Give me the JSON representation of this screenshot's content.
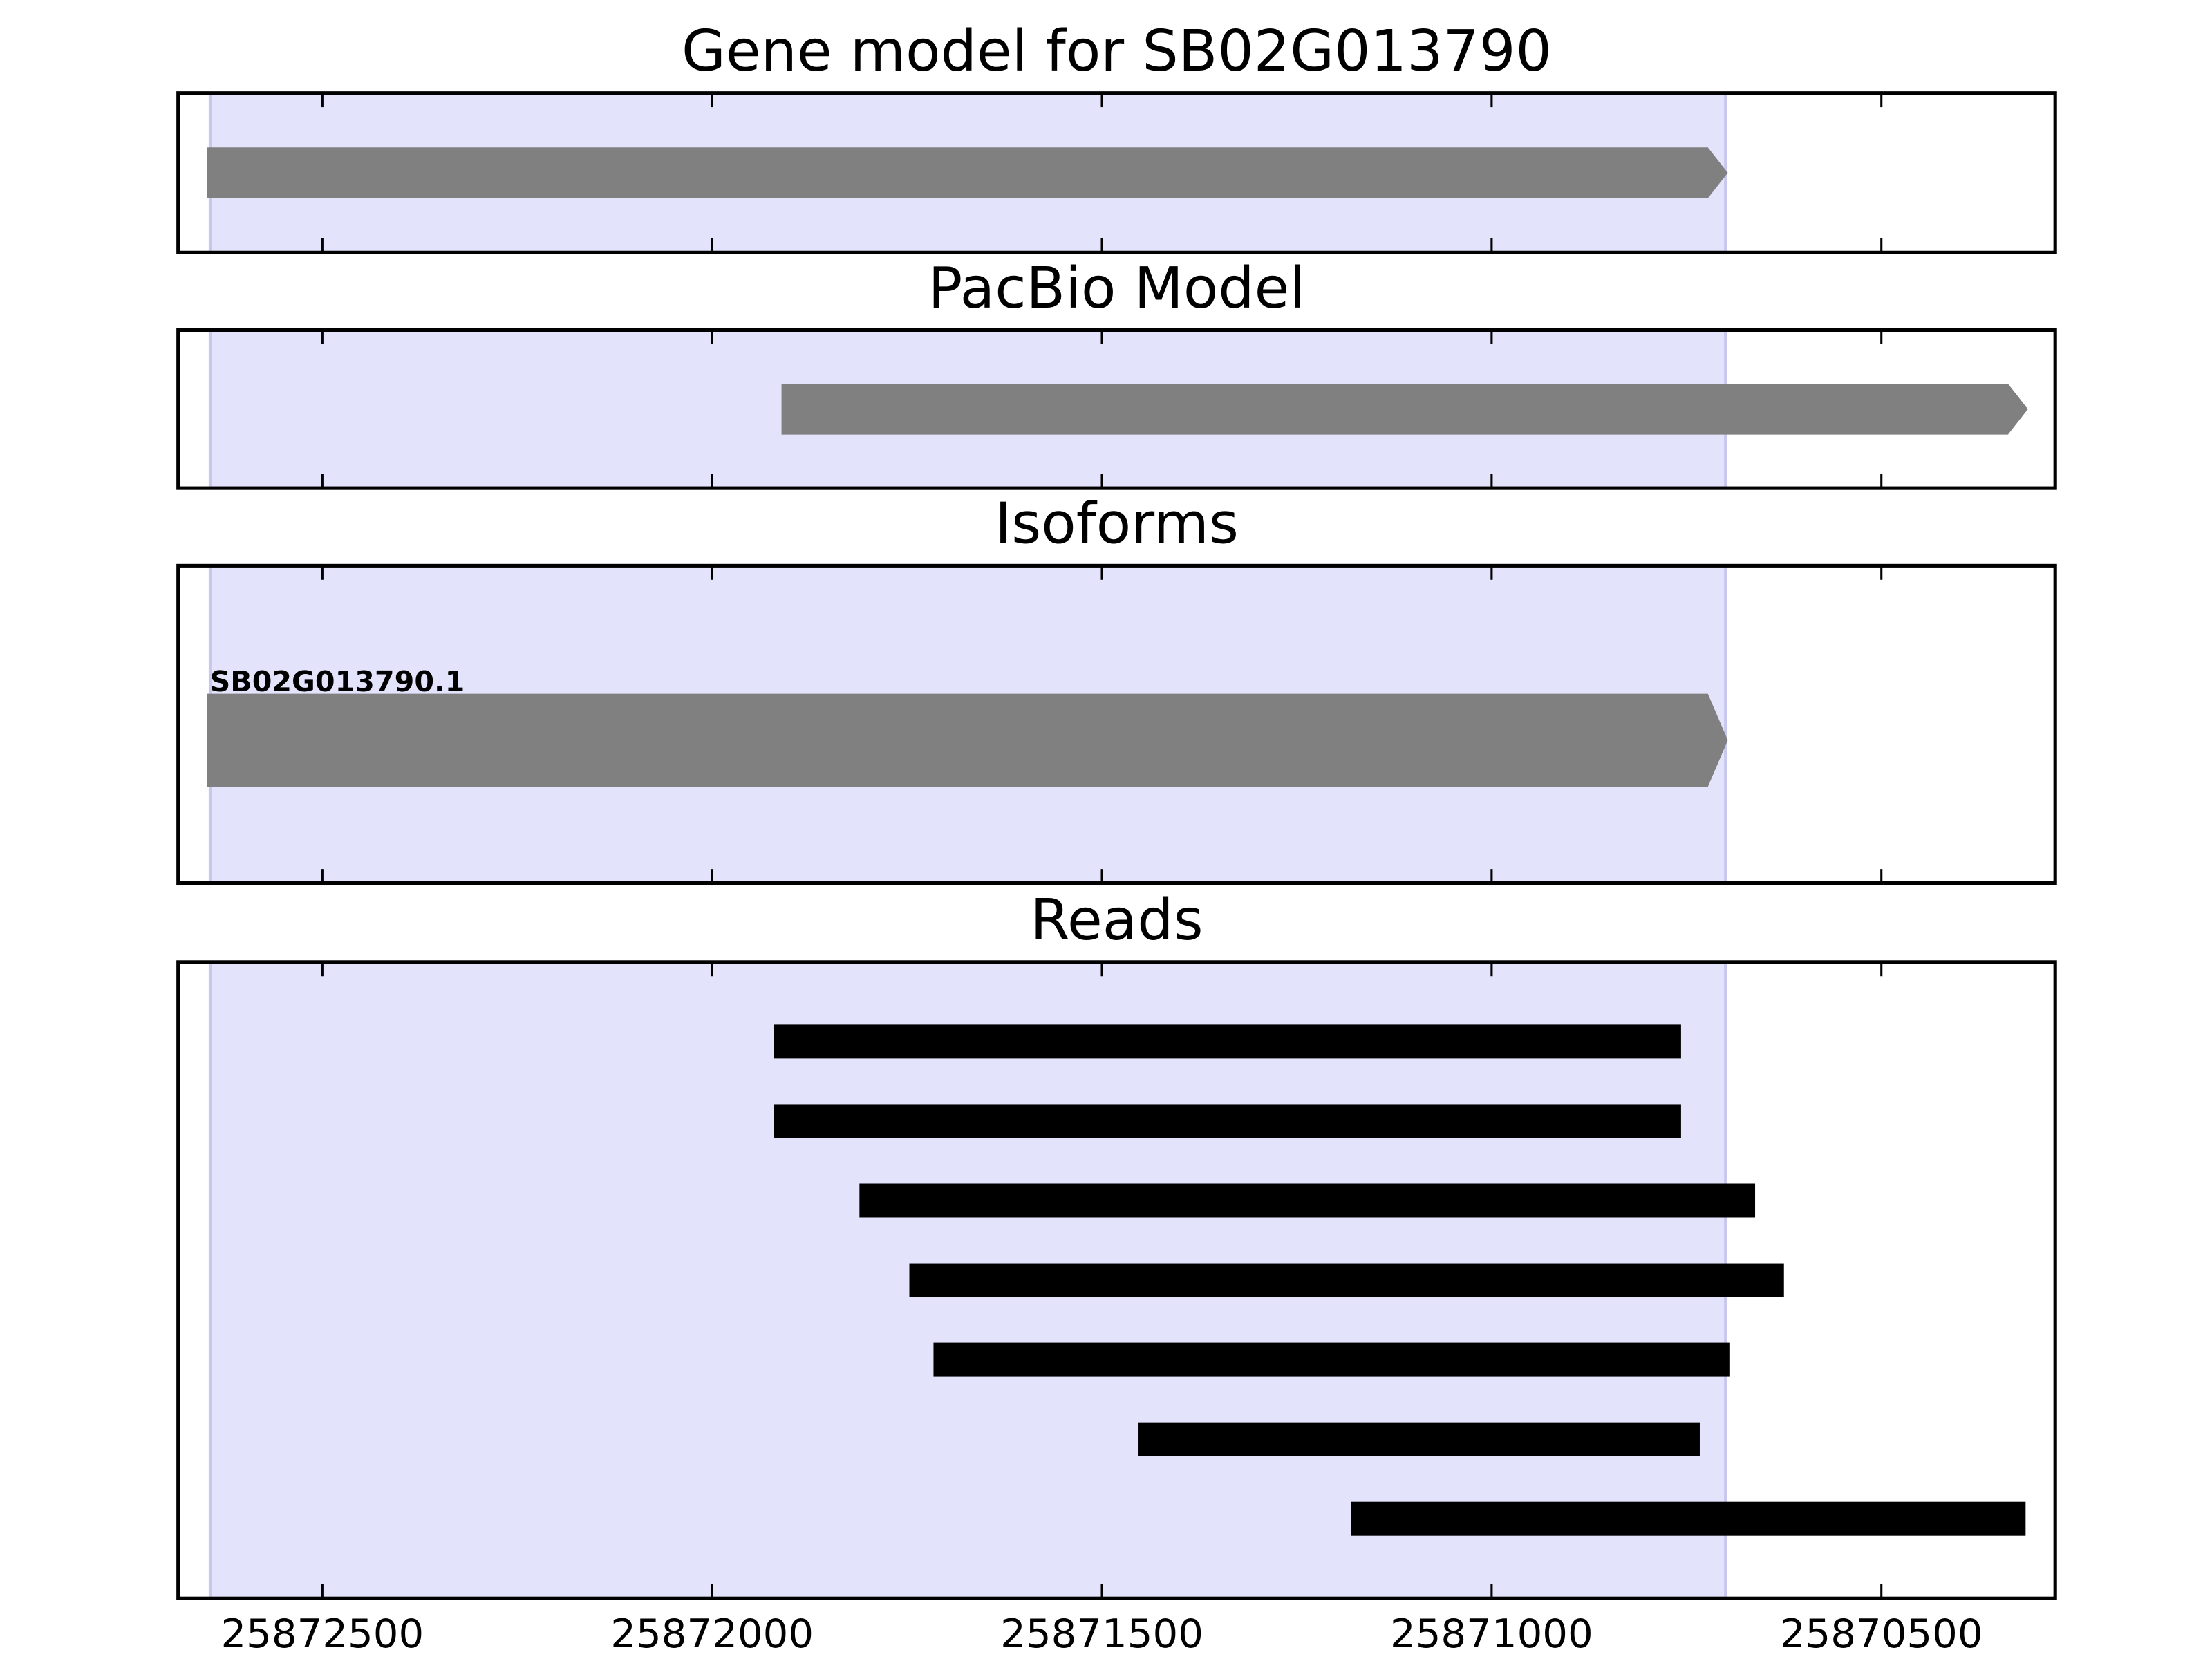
{
  "chart_data": [
    {
      "type": "range",
      "title": "Gene model for SB02G013790",
      "xlim": [
        25872685,
        25870277
      ],
      "xticks": [
        25872500,
        25872000,
        25871500,
        25871000,
        25870500
      ],
      "highlight": [
        25872644,
        25870700
      ],
      "highlight_color": "#e3e3fc",
      "color": "#808080",
      "arrow": true,
      "intervals": [
        {
          "start": 25872648,
          "end": 25870697
        }
      ]
    },
    {
      "type": "range",
      "title": "PacBio Model",
      "xlim": [
        25872685,
        25870277
      ],
      "xticks": [
        25872500,
        25872000,
        25871500,
        25871000,
        25870500
      ],
      "highlight": [
        25872644,
        25870700
      ],
      "highlight_color": "#e3e3fc",
      "color": "#808080",
      "arrow": true,
      "intervals": [
        {
          "start": 25871911,
          "end": 25870312
        }
      ]
    },
    {
      "type": "range",
      "title": "Isoforms",
      "xlim": [
        25872685,
        25870277
      ],
      "xticks": [
        25872500,
        25872000,
        25871500,
        25871000,
        25870500
      ],
      "highlight": [
        25872644,
        25870700
      ],
      "highlight_color": "#e3e3fc",
      "color": "#808080",
      "arrow": true,
      "intervals": [
        {
          "label": "SB02G013790.1",
          "start": 25872648,
          "end": 25870697
        }
      ]
    },
    {
      "type": "range",
      "title": "Reads",
      "xlim": [
        25872685,
        25870277
      ],
      "xticks": [
        25872500,
        25872000,
        25871500,
        25871000,
        25870500
      ],
      "highlight": [
        25872644,
        25870700
      ],
      "highlight_color": "#e3e3fc",
      "color": "#000000",
      "arrow": false,
      "tick_labels": true,
      "intervals": [
        {
          "start": 25871921,
          "end": 25870757
        },
        {
          "start": 25871921,
          "end": 25870757
        },
        {
          "start": 25871811,
          "end": 25870662
        },
        {
          "start": 25871747,
          "end": 25870625
        },
        {
          "start": 25871716,
          "end": 25870695
        },
        {
          "start": 25871453,
          "end": 25870733
        },
        {
          "start": 25871180,
          "end": 25870315
        }
      ]
    }
  ]
}
